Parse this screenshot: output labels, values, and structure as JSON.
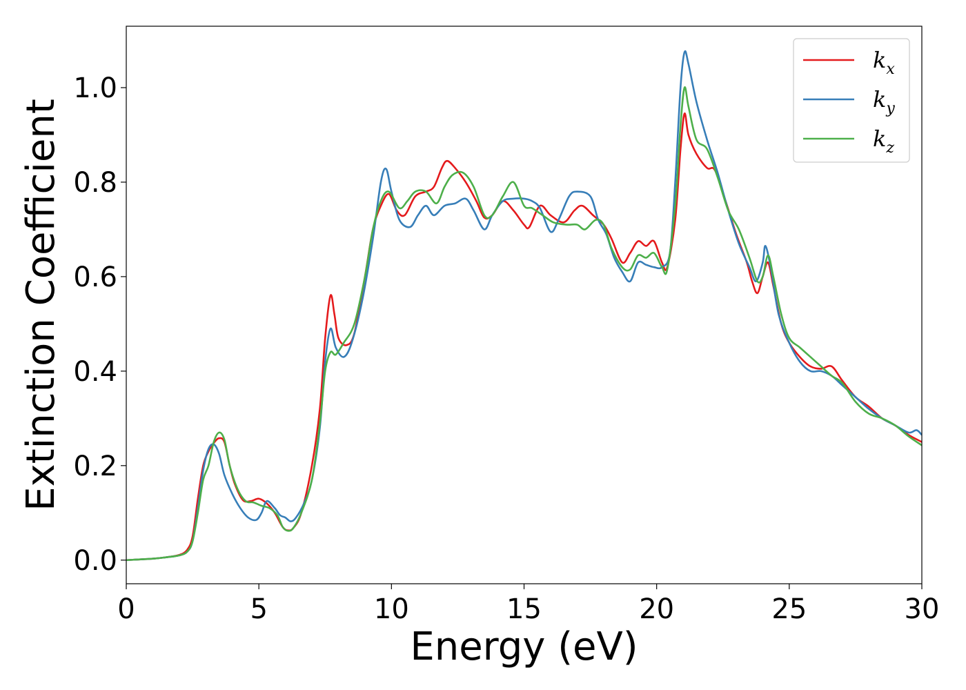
{
  "chart_data": {
    "type": "line",
    "xlabel": "Energy (eV)",
    "ylabel": "Extinction Coefficient",
    "xlim": [
      0,
      30
    ],
    "ylim": [
      -0.05,
      1.13
    ],
    "x_ticks": [
      "0",
      "5",
      "10",
      "15",
      "20",
      "25",
      "30"
    ],
    "y_ticks": [
      "0.0",
      "0.2",
      "0.4",
      "0.6",
      "0.8",
      "1.0"
    ],
    "grid": false,
    "legend_position": "top-right",
    "series": [
      {
        "name": "kx",
        "legend_base": "k",
        "legend_sub": "x",
        "color": "#e41a1c",
        "points": [
          [
            0,
            0
          ],
          [
            1,
            0.003
          ],
          [
            1.5,
            0.006
          ],
          [
            2,
            0.011
          ],
          [
            2.3,
            0.022
          ],
          [
            2.5,
            0.05
          ],
          [
            2.7,
            0.13
          ],
          [
            2.9,
            0.2
          ],
          [
            3.1,
            0.23
          ],
          [
            3.3,
            0.248
          ],
          [
            3.5,
            0.258
          ],
          [
            3.7,
            0.25
          ],
          [
            3.9,
            0.2
          ],
          [
            4.1,
            0.16
          ],
          [
            4.4,
            0.127
          ],
          [
            4.7,
            0.125
          ],
          [
            5.0,
            0.13
          ],
          [
            5.3,
            0.12
          ],
          [
            5.6,
            0.1
          ],
          [
            5.9,
            0.07
          ],
          [
            6.1,
            0.063
          ],
          [
            6.3,
            0.068
          ],
          [
            6.6,
            0.1
          ],
          [
            7.0,
            0.2
          ],
          [
            7.3,
            0.32
          ],
          [
            7.5,
            0.47
          ],
          [
            7.7,
            0.56
          ],
          [
            7.85,
            0.52
          ],
          [
            8.0,
            0.47
          ],
          [
            8.3,
            0.455
          ],
          [
            8.6,
            0.48
          ],
          [
            9.0,
            0.6
          ],
          [
            9.3,
            0.7
          ],
          [
            9.6,
            0.75
          ],
          [
            9.9,
            0.775
          ],
          [
            10.2,
            0.74
          ],
          [
            10.5,
            0.73
          ],
          [
            10.9,
            0.77
          ],
          [
            11.3,
            0.78
          ],
          [
            11.6,
            0.79
          ],
          [
            11.9,
            0.83
          ],
          [
            12.1,
            0.845
          ],
          [
            12.4,
            0.83
          ],
          [
            12.8,
            0.8
          ],
          [
            13.2,
            0.76
          ],
          [
            13.5,
            0.725
          ],
          [
            13.8,
            0.73
          ],
          [
            14.2,
            0.76
          ],
          [
            14.6,
            0.74
          ],
          [
            15.0,
            0.71
          ],
          [
            15.2,
            0.705
          ],
          [
            15.6,
            0.75
          ],
          [
            16.0,
            0.73
          ],
          [
            16.5,
            0.715
          ],
          [
            16.9,
            0.74
          ],
          [
            17.2,
            0.75
          ],
          [
            17.6,
            0.73
          ],
          [
            18.0,
            0.71
          ],
          [
            18.3,
            0.68
          ],
          [
            18.7,
            0.63
          ],
          [
            19.0,
            0.65
          ],
          [
            19.3,
            0.675
          ],
          [
            19.6,
            0.665
          ],
          [
            19.9,
            0.675
          ],
          [
            20.2,
            0.63
          ],
          [
            20.4,
            0.62
          ],
          [
            20.7,
            0.72
          ],
          [
            20.9,
            0.87
          ],
          [
            21.05,
            0.945
          ],
          [
            21.2,
            0.9
          ],
          [
            21.5,
            0.86
          ],
          [
            21.9,
            0.83
          ],
          [
            22.2,
            0.825
          ],
          [
            22.6,
            0.76
          ],
          [
            23.0,
            0.69
          ],
          [
            23.4,
            0.63
          ],
          [
            23.6,
            0.59
          ],
          [
            23.8,
            0.565
          ],
          [
            24.0,
            0.6
          ],
          [
            24.2,
            0.63
          ],
          [
            24.4,
            0.58
          ],
          [
            24.7,
            0.5
          ],
          [
            25.0,
            0.46
          ],
          [
            25.4,
            0.43
          ],
          [
            25.8,
            0.41
          ],
          [
            26.2,
            0.405
          ],
          [
            26.6,
            0.41
          ],
          [
            27.0,
            0.38
          ],
          [
            27.5,
            0.345
          ],
          [
            28.0,
            0.325
          ],
          [
            28.5,
            0.3
          ],
          [
            29.0,
            0.285
          ],
          [
            29.5,
            0.265
          ],
          [
            30.0,
            0.25
          ]
        ]
      },
      {
        "name": "ky",
        "legend_base": "k",
        "legend_sub": "y",
        "color": "#377eb8",
        "points": [
          [
            0,
            0
          ],
          [
            1,
            0.003
          ],
          [
            1.5,
            0.006
          ],
          [
            2,
            0.01
          ],
          [
            2.3,
            0.018
          ],
          [
            2.5,
            0.04
          ],
          [
            2.7,
            0.11
          ],
          [
            2.9,
            0.19
          ],
          [
            3.1,
            0.235
          ],
          [
            3.3,
            0.245
          ],
          [
            3.5,
            0.225
          ],
          [
            3.7,
            0.18
          ],
          [
            4.0,
            0.14
          ],
          [
            4.3,
            0.11
          ],
          [
            4.6,
            0.09
          ],
          [
            4.9,
            0.085
          ],
          [
            5.1,
            0.1
          ],
          [
            5.3,
            0.125
          ],
          [
            5.6,
            0.11
          ],
          [
            5.8,
            0.095
          ],
          [
            6.0,
            0.09
          ],
          [
            6.2,
            0.082
          ],
          [
            6.4,
            0.09
          ],
          [
            6.7,
            0.12
          ],
          [
            7.0,
            0.17
          ],
          [
            7.3,
            0.28
          ],
          [
            7.5,
            0.42
          ],
          [
            7.7,
            0.49
          ],
          [
            7.9,
            0.45
          ],
          [
            8.2,
            0.43
          ],
          [
            8.5,
            0.46
          ],
          [
            8.9,
            0.55
          ],
          [
            9.3,
            0.68
          ],
          [
            9.6,
            0.8
          ],
          [
            9.8,
            0.828
          ],
          [
            10.0,
            0.78
          ],
          [
            10.3,
            0.72
          ],
          [
            10.7,
            0.705
          ],
          [
            11.0,
            0.73
          ],
          [
            11.3,
            0.75
          ],
          [
            11.6,
            0.73
          ],
          [
            12.0,
            0.75
          ],
          [
            12.4,
            0.755
          ],
          [
            12.8,
            0.765
          ],
          [
            13.1,
            0.74
          ],
          [
            13.5,
            0.7
          ],
          [
            13.8,
            0.73
          ],
          [
            14.2,
            0.76
          ],
          [
            14.6,
            0.765
          ],
          [
            15.0,
            0.765
          ],
          [
            15.3,
            0.76
          ],
          [
            15.6,
            0.745
          ],
          [
            16.0,
            0.695
          ],
          [
            16.3,
            0.72
          ],
          [
            16.7,
            0.77
          ],
          [
            17.0,
            0.78
          ],
          [
            17.5,
            0.77
          ],
          [
            17.8,
            0.72
          ],
          [
            18.1,
            0.69
          ],
          [
            18.4,
            0.64
          ],
          [
            18.7,
            0.61
          ],
          [
            19.0,
            0.59
          ],
          [
            19.3,
            0.63
          ],
          [
            19.6,
            0.625
          ],
          [
            19.9,
            0.62
          ],
          [
            20.2,
            0.62
          ],
          [
            20.5,
            0.65
          ],
          [
            20.7,
            0.8
          ],
          [
            20.9,
            1.0
          ],
          [
            21.05,
            1.075
          ],
          [
            21.2,
            1.05
          ],
          [
            21.5,
            0.97
          ],
          [
            21.9,
            0.89
          ],
          [
            22.3,
            0.82
          ],
          [
            22.7,
            0.74
          ],
          [
            23.1,
            0.67
          ],
          [
            23.5,
            0.62
          ],
          [
            23.75,
            0.59
          ],
          [
            24.0,
            0.63
          ],
          [
            24.1,
            0.665
          ],
          [
            24.3,
            0.62
          ],
          [
            24.6,
            0.52
          ],
          [
            25.0,
            0.46
          ],
          [
            25.4,
            0.42
          ],
          [
            25.8,
            0.4
          ],
          [
            26.2,
            0.4
          ],
          [
            26.6,
            0.39
          ],
          [
            27.0,
            0.37
          ],
          [
            27.5,
            0.345
          ],
          [
            28.0,
            0.32
          ],
          [
            28.5,
            0.3
          ],
          [
            29.0,
            0.285
          ],
          [
            29.5,
            0.27
          ],
          [
            29.8,
            0.275
          ],
          [
            30.0,
            0.265
          ]
        ]
      },
      {
        "name": "kz",
        "legend_base": "k",
        "legend_sub": "z",
        "color": "#4daf4a",
        "points": [
          [
            0,
            0
          ],
          [
            1,
            0.003
          ],
          [
            1.5,
            0.006
          ],
          [
            2,
            0.01
          ],
          [
            2.3,
            0.018
          ],
          [
            2.5,
            0.04
          ],
          [
            2.7,
            0.1
          ],
          [
            2.9,
            0.17
          ],
          [
            3.1,
            0.2
          ],
          [
            3.3,
            0.25
          ],
          [
            3.5,
            0.27
          ],
          [
            3.7,
            0.255
          ],
          [
            3.9,
            0.2
          ],
          [
            4.2,
            0.15
          ],
          [
            4.5,
            0.125
          ],
          [
            4.8,
            0.122
          ],
          [
            5.1,
            0.115
          ],
          [
            5.4,
            0.11
          ],
          [
            5.7,
            0.095
          ],
          [
            5.9,
            0.07
          ],
          [
            6.1,
            0.062
          ],
          [
            6.3,
            0.068
          ],
          [
            6.6,
            0.1
          ],
          [
            7.0,
            0.17
          ],
          [
            7.3,
            0.29
          ],
          [
            7.5,
            0.4
          ],
          [
            7.7,
            0.44
          ],
          [
            7.9,
            0.435
          ],
          [
            8.2,
            0.46
          ],
          [
            8.6,
            0.5
          ],
          [
            9.0,
            0.6
          ],
          [
            9.3,
            0.7
          ],
          [
            9.6,
            0.76
          ],
          [
            9.9,
            0.78
          ],
          [
            10.3,
            0.745
          ],
          [
            10.6,
            0.76
          ],
          [
            10.9,
            0.78
          ],
          [
            11.3,
            0.78
          ],
          [
            11.7,
            0.755
          ],
          [
            12.0,
            0.79
          ],
          [
            12.3,
            0.815
          ],
          [
            12.7,
            0.82
          ],
          [
            13.1,
            0.79
          ],
          [
            13.5,
            0.73
          ],
          [
            13.8,
            0.73
          ],
          [
            14.2,
            0.77
          ],
          [
            14.6,
            0.8
          ],
          [
            15.0,
            0.75
          ],
          [
            15.3,
            0.745
          ],
          [
            15.7,
            0.73
          ],
          [
            16.1,
            0.715
          ],
          [
            16.6,
            0.71
          ],
          [
            17.0,
            0.71
          ],
          [
            17.3,
            0.7
          ],
          [
            17.7,
            0.72
          ],
          [
            18.0,
            0.71
          ],
          [
            18.3,
            0.66
          ],
          [
            18.7,
            0.62
          ],
          [
            19.0,
            0.615
          ],
          [
            19.3,
            0.645
          ],
          [
            19.6,
            0.64
          ],
          [
            19.9,
            0.65
          ],
          [
            20.2,
            0.62
          ],
          [
            20.4,
            0.615
          ],
          [
            20.7,
            0.75
          ],
          [
            20.9,
            0.92
          ],
          [
            21.05,
            1.0
          ],
          [
            21.2,
            0.96
          ],
          [
            21.5,
            0.89
          ],
          [
            21.9,
            0.87
          ],
          [
            22.3,
            0.81
          ],
          [
            22.7,
            0.74
          ],
          [
            23.1,
            0.7
          ],
          [
            23.5,
            0.64
          ],
          [
            23.8,
            0.59
          ],
          [
            24.0,
            0.6
          ],
          [
            24.2,
            0.645
          ],
          [
            24.4,
            0.6
          ],
          [
            24.7,
            0.52
          ],
          [
            25.0,
            0.47
          ],
          [
            25.4,
            0.45
          ],
          [
            25.8,
            0.43
          ],
          [
            26.2,
            0.41
          ],
          [
            26.6,
            0.39
          ],
          [
            27.0,
            0.375
          ],
          [
            27.5,
            0.335
          ],
          [
            28.0,
            0.31
          ],
          [
            28.5,
            0.3
          ],
          [
            29.0,
            0.285
          ],
          [
            29.5,
            0.262
          ],
          [
            30.0,
            0.243
          ]
        ]
      }
    ]
  }
}
